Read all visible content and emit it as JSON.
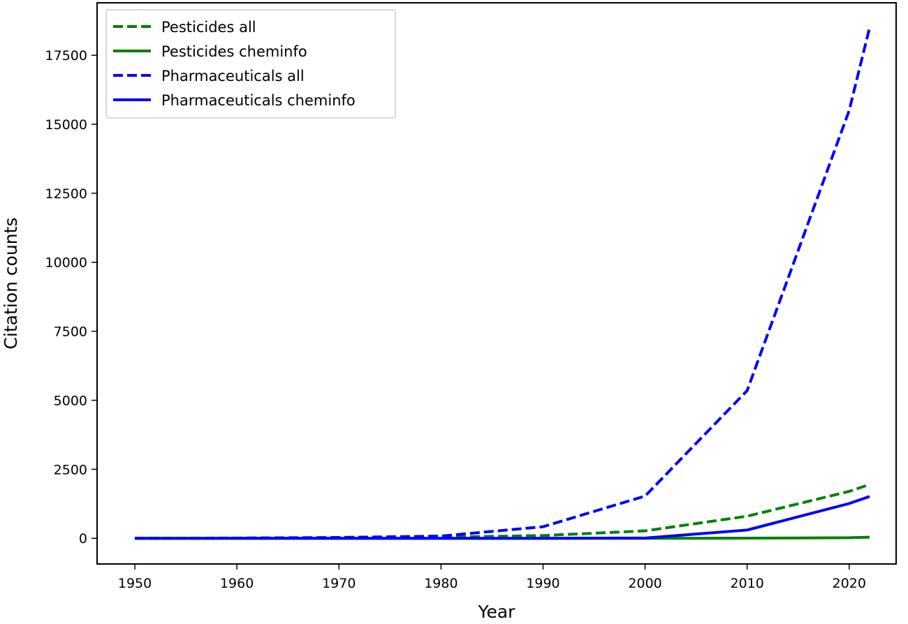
{
  "chart_data": {
    "type": "line",
    "title": "",
    "xlabel": "Year",
    "ylabel": "Citation counts",
    "x": [
      1950,
      1960,
      1970,
      1980,
      1990,
      2000,
      2010,
      2020,
      2022
    ],
    "xlim": [
      1946.3,
      2024.6
    ],
    "ylim": [
      -930,
      19400
    ],
    "xticks": [
      1950,
      1960,
      1970,
      1980,
      1990,
      2000,
      2010,
      2020
    ],
    "yticks": [
      0,
      2500,
      5000,
      7500,
      10000,
      12500,
      15000,
      17500
    ],
    "grid": false,
    "legend_position": "top-left",
    "series": [
      {
        "name": "Pesticides all",
        "color": "#008000",
        "style": "dashed",
        "values": [
          0,
          5,
          15,
          40,
          100,
          270,
          800,
          1700,
          1950
        ]
      },
      {
        "name": "Pesticides cheminfo",
        "color": "#008000",
        "style": "solid",
        "values": [
          0,
          0,
          0,
          0,
          0,
          0,
          5,
          20,
          40
        ]
      },
      {
        "name": "Pharmaceuticals all",
        "color": "#0000ff",
        "style": "dashed",
        "values": [
          0,
          10,
          30,
          80,
          420,
          1530,
          5350,
          15500,
          18500
        ]
      },
      {
        "name": "Pharmaceuticals cheminfo",
        "color": "#0000ff",
        "style": "solid",
        "values": [
          0,
          0,
          0,
          0,
          0,
          10,
          300,
          1260,
          1515
        ]
      }
    ]
  }
}
